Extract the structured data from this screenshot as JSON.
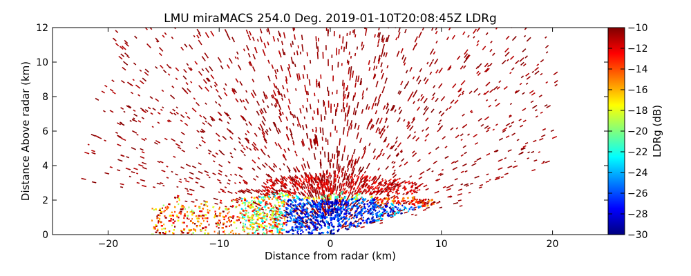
{
  "chart_data": {
    "type": "scatter",
    "title": "LMU miraMACS 254.0 Deg. 2019-01-10T20:08:45Z  LDRg",
    "xlabel": "Distance from radar (km)",
    "ylabel": "Distance Above radar  (km)",
    "xlim": [
      -25,
      25
    ],
    "ylim": [
      0,
      12
    ],
    "xticks": [
      -20,
      -10,
      0,
      10,
      20
    ],
    "yticks": [
      0,
      2,
      4,
      6,
      8,
      10,
      12
    ],
    "grid": false,
    "scan_type": "RHI",
    "elevation_sweep_deg": [
      0,
      180
    ],
    "radar_position_km": [
      0,
      0
    ],
    "colorbar": {
      "label": "LDRg (dB)",
      "range": [
        -30,
        -10
      ],
      "ticks": [
        -10,
        -12,
        -14,
        -16,
        -18,
        -20,
        -22,
        -24,
        -26,
        -28,
        -30
      ],
      "colormap": "jet",
      "colors": [
        "#00007f",
        "#0000ff",
        "#007fff",
        "#00ffff",
        "#7fff7f",
        "#ffff00",
        "#ff7f00",
        "#ff0000",
        "#7f0000"
      ]
    },
    "field_regions": [
      {
        "description": "sparse speckle returns",
        "range_km": [
          1.0,
          22.0
        ],
        "height_km": [
          0.3,
          12.0
        ],
        "ldr_db": -10
      },
      {
        "description": "boundary layer low LDR",
        "x_km": [
          -6,
          12
        ],
        "height_km": [
          0.0,
          2.3
        ],
        "ldr_db": -28
      },
      {
        "description": "melting layer high LDR",
        "x_km": [
          -15,
          -4
        ],
        "height_km": [
          0.3,
          2.4
        ],
        "ldr_db": -14
      },
      {
        "description": "enhanced layer aloft",
        "x_km": [
          3,
          10
        ],
        "height_km": [
          1.8,
          2.6
        ],
        "ldr_db": -12
      }
    ]
  }
}
